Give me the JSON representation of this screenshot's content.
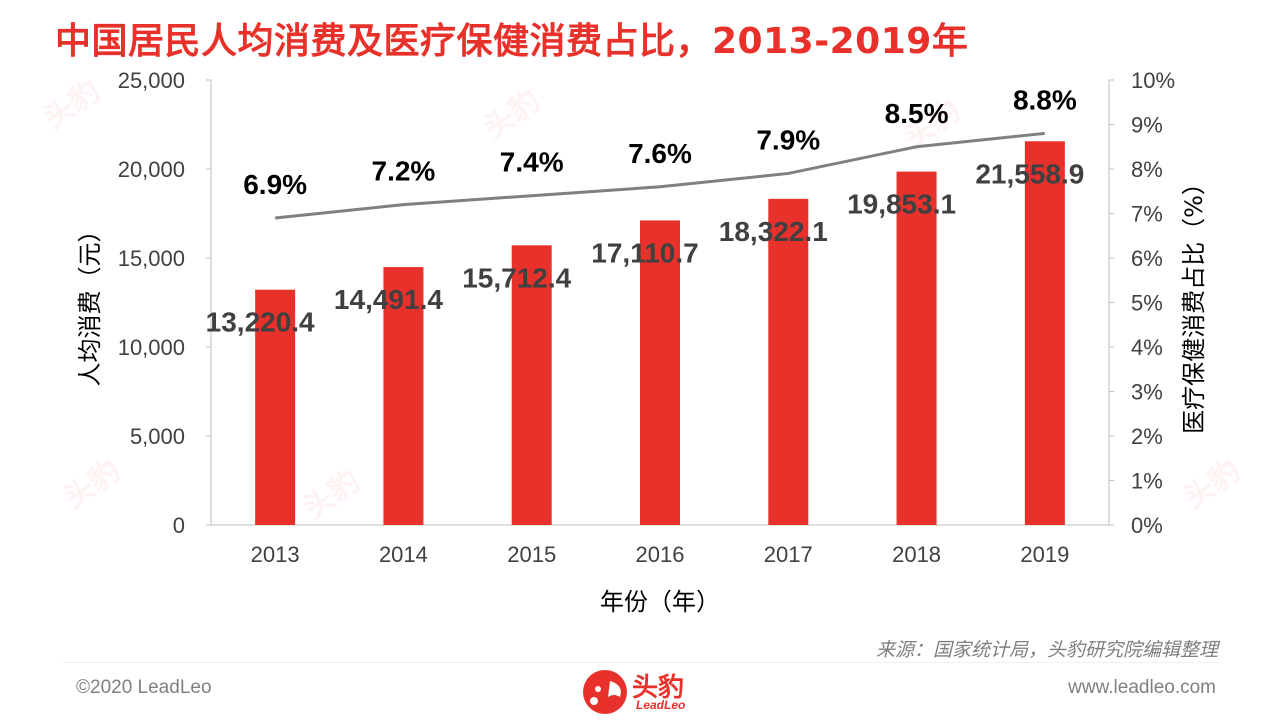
{
  "title": "中国居民人均消费及医疗保健消费占比，2013-2019年",
  "source": "来源：国家统计局，头豹研究院编辑整理",
  "footer": {
    "copyright": "©2020 LeadLeo",
    "website": "www.leadleo.com",
    "brand_cn": "头豹",
    "brand_en": "LeadLeo"
  },
  "colors": {
    "bar": "#e8312a",
    "line": "#808080",
    "title": "#e8312a"
  },
  "chart_data": {
    "type": "bar",
    "categories": [
      "2013",
      "2014",
      "2015",
      "2016",
      "2017",
      "2018",
      "2019"
    ],
    "xlabel": "年份（年）",
    "ylabel": "人均消费（元）",
    "y2label": "医疗保健消费占比（%）",
    "ylim": [
      0,
      25000
    ],
    "yticks": [
      "0",
      "5,000",
      "10,000",
      "15,000",
      "20,000",
      "25,000"
    ],
    "y2lim": [
      0,
      10
    ],
    "y2ticks": [
      "0%",
      "1%",
      "2%",
      "3%",
      "4%",
      "5%",
      "6%",
      "7%",
      "8%",
      "9%",
      "10%"
    ],
    "grid": false,
    "series": [
      {
        "type": "bar",
        "axis": "left",
        "values": [
          13220.4,
          14491.4,
          15712.4,
          17110.7,
          18322.1,
          19853.1,
          21558.9
        ],
        "labels": [
          "13,220.4",
          "14,491.4",
          "15,712.4",
          "17,110.7",
          "18,322.1",
          "19,853.1",
          "21,558.9"
        ]
      },
      {
        "type": "line",
        "axis": "right",
        "values": [
          6.9,
          7.2,
          7.4,
          7.6,
          7.9,
          8.5,
          8.8
        ],
        "labels": [
          "6.9%",
          "7.2%",
          "7.4%",
          "7.6%",
          "7.9%",
          "8.5%",
          "8.8%"
        ]
      }
    ]
  }
}
